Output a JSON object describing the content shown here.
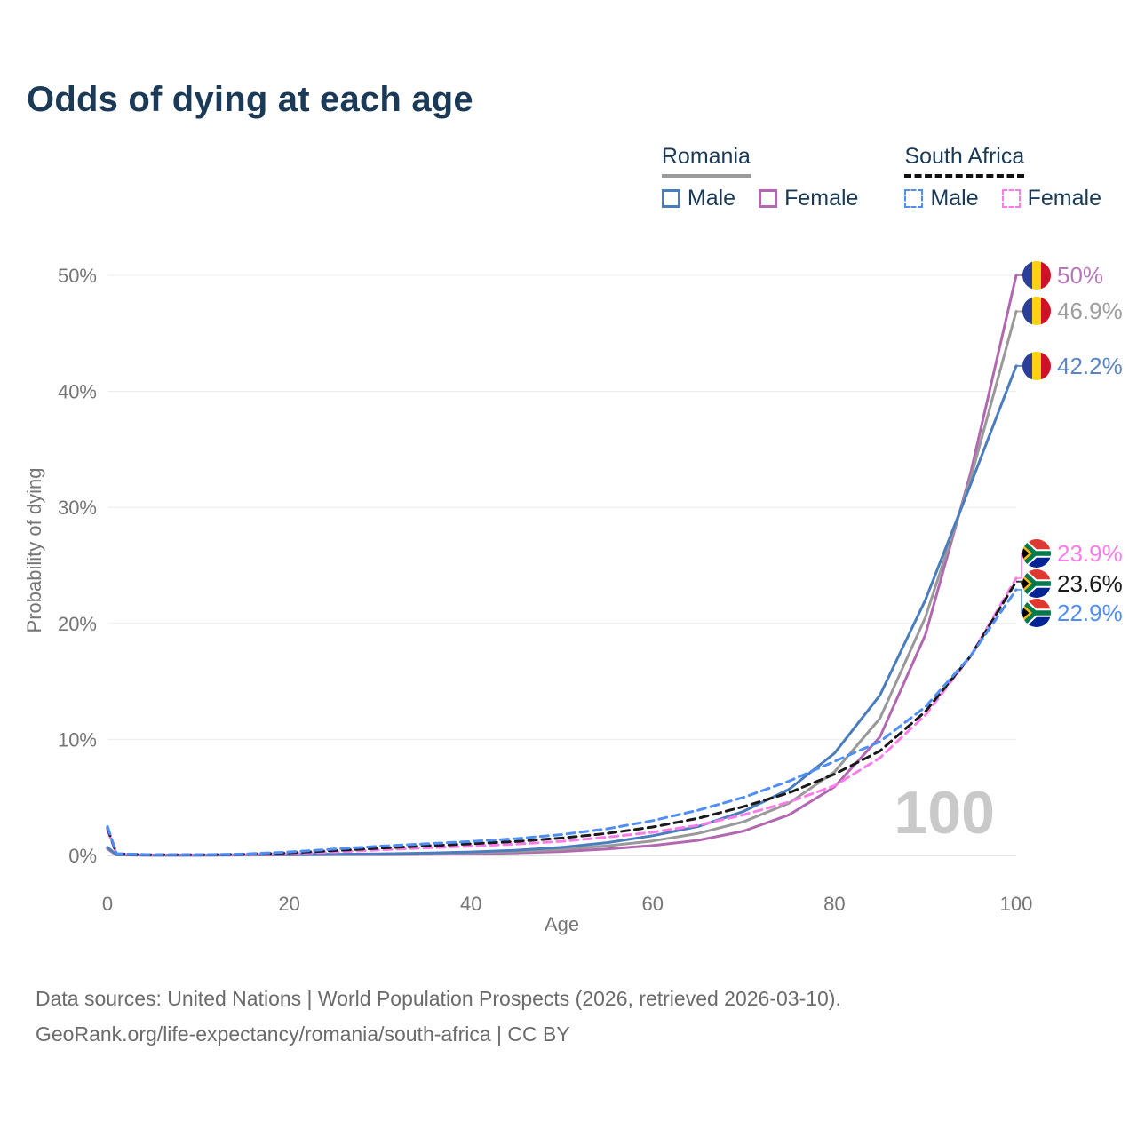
{
  "title": "Odds of dying at each age",
  "legend": {
    "groups": [
      {
        "name": "Romania",
        "line_style": "solid",
        "underline_color": "#9b9b9b",
        "items": [
          {
            "label": "Male",
            "color": "#4a7dbd"
          },
          {
            "label": "Female",
            "color": "#b168b1"
          }
        ]
      },
      {
        "name": "South Africa",
        "line_style": "dashed",
        "underline_color": "#111111",
        "items": [
          {
            "label": "Male",
            "color": "#4f8ef7"
          },
          {
            "label": "Female",
            "color": "#fb7ce8"
          }
        ]
      }
    ]
  },
  "watermark": "100",
  "footer": {
    "line1": "Data sources: United Nations | World Population Prospects (2026, retrieved 2026-03-10).",
    "line2": "GeoRank.org/life-expectancy/romania/south-africa | CC BY"
  },
  "colors": {
    "title_text": "#1b3a57",
    "axis_text": "#757575",
    "grid_line": "#ececec",
    "zero_line": "#d9d9d9",
    "watermark": "#c9c9c9",
    "footer_text": "#6b6b6b"
  },
  "chart_data": {
    "type": "line",
    "title": "Odds of dying at each age",
    "xlabel": "Age",
    "ylabel": "Probability of dying",
    "xlim": [
      0,
      100
    ],
    "ylim": [
      0,
      50
    ],
    "x_ticks": [
      0,
      20,
      40,
      60,
      80,
      100
    ],
    "y_ticks": [
      0,
      10,
      20,
      30,
      40,
      50
    ],
    "y_tick_labels": [
      "0%",
      "10%",
      "20%",
      "30%",
      "40%",
      "50%"
    ],
    "grid": "horizontal",
    "legend_position": "top-right",
    "x": [
      0,
      1,
      5,
      10,
      15,
      20,
      25,
      30,
      35,
      40,
      45,
      50,
      55,
      60,
      65,
      70,
      75,
      80,
      85,
      90,
      95,
      100
    ],
    "series": [
      {
        "id": "romania-female",
        "name": "Romania Female",
        "country": "Romania",
        "sex": "Female",
        "color": "#b168b1",
        "dash": "solid",
        "flag": "ro",
        "end_label": "50%",
        "label_color": "#b678b8",
        "label_at_pct": 50,
        "values": [
          0.55,
          0.04,
          0.02,
          0.02,
          0.03,
          0.04,
          0.05,
          0.06,
          0.09,
          0.14,
          0.22,
          0.34,
          0.55,
          0.85,
          1.3,
          2.1,
          3.5,
          5.9,
          10.2,
          19.0,
          33.0,
          50.0
        ]
      },
      {
        "id": "romania-both",
        "name": "Romania Both sexes",
        "country": "Romania",
        "sex": "Both",
        "color": "#999999",
        "dash": "solid",
        "flag": "ro",
        "end_label": "46.9%",
        "label_color": "#9e9e9e",
        "label_at_pct": 46.9,
        "values": [
          0.62,
          0.045,
          0.02,
          0.02,
          0.04,
          0.065,
          0.08,
          0.1,
          0.15,
          0.22,
          0.34,
          0.52,
          0.82,
          1.25,
          1.9,
          2.9,
          4.5,
          7.2,
          11.8,
          20.5,
          32.5,
          46.9
        ]
      },
      {
        "id": "romania-male",
        "name": "Romania Male",
        "country": "Romania",
        "sex": "Male",
        "color": "#4a7dbd",
        "dash": "solid",
        "flag": "ro",
        "end_label": "42.2%",
        "label_color": "#5b86c4",
        "label_at_pct": 42.2,
        "values": [
          0.7,
          0.05,
          0.02,
          0.02,
          0.05,
          0.09,
          0.11,
          0.14,
          0.2,
          0.3,
          0.45,
          0.7,
          1.1,
          1.7,
          2.5,
          3.8,
          5.7,
          8.8,
          13.8,
          22.0,
          32.0,
          42.2
        ]
      },
      {
        "id": "south-africa-female",
        "name": "South Africa Female",
        "country": "South Africa",
        "sex": "Female",
        "color": "#fb7ce8",
        "dash": "dashed",
        "flag": "za",
        "end_label": "23.9%",
        "label_color": "#fb7ce8",
        "label_at_pct": 26.0,
        "values": [
          2.2,
          0.12,
          0.05,
          0.05,
          0.08,
          0.15,
          0.3,
          0.48,
          0.65,
          0.8,
          0.98,
          1.22,
          1.58,
          2.0,
          2.6,
          3.5,
          4.6,
          6.0,
          8.4,
          12.1,
          17.2,
          23.9
        ]
      },
      {
        "id": "south-africa-both",
        "name": "South Africa Both sexes",
        "country": "South Africa",
        "sex": "Both",
        "color": "#1a1a1a",
        "dash": "dashed",
        "flag": "za",
        "end_label": "23.6%",
        "label_color": "#1a1a1a",
        "label_at_pct": 23.4,
        "values": [
          2.35,
          0.14,
          0.055,
          0.055,
          0.1,
          0.22,
          0.42,
          0.63,
          0.82,
          1.0,
          1.2,
          1.5,
          1.9,
          2.45,
          3.2,
          4.2,
          5.4,
          7.0,
          9.0,
          12.4,
          17.2,
          23.6
        ]
      },
      {
        "id": "south-africa-male",
        "name": "South Africa Male",
        "country": "South Africa",
        "sex": "Male",
        "color": "#4f8ef7",
        "dash": "dashed",
        "flag": "za",
        "end_label": "22.9%",
        "label_color": "#4f8ef7",
        "label_at_pct": 20.9,
        "values": [
          2.5,
          0.15,
          0.06,
          0.06,
          0.12,
          0.3,
          0.55,
          0.8,
          1.0,
          1.2,
          1.45,
          1.8,
          2.3,
          3.0,
          3.9,
          5.0,
          6.4,
          8.1,
          9.8,
          12.8,
          17.2,
          22.9
        ]
      }
    ],
    "annotations": [
      {
        "type": "watermark",
        "text": "100"
      }
    ]
  }
}
